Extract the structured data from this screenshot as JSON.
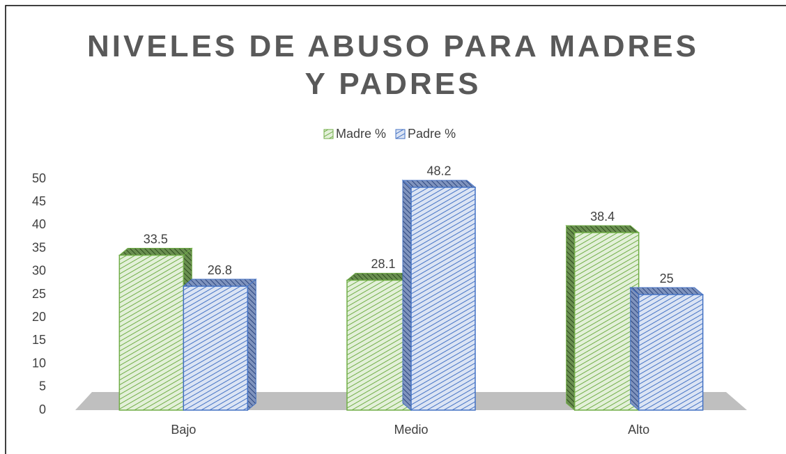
{
  "chart_data": {
    "type": "bar3d",
    "title": "NIVELES DE ABUSO PARA MADRES Y PADRES",
    "categories": [
      "Bajo",
      "Medio",
      "Alto"
    ],
    "series": [
      {
        "name": "Madre %",
        "color": "#70ad47",
        "values": [
          33.5,
          28.1,
          38.4
        ]
      },
      {
        "name": "Padre %",
        "color": "#4472c4",
        "values": [
          26.8,
          48.2,
          25
        ]
      }
    ],
    "ylim": [
      0,
      50
    ],
    "yticks": [
      0,
      5,
      10,
      15,
      20,
      25,
      30,
      35,
      40,
      45,
      50
    ],
    "legend": "top",
    "data_labels": true
  }
}
